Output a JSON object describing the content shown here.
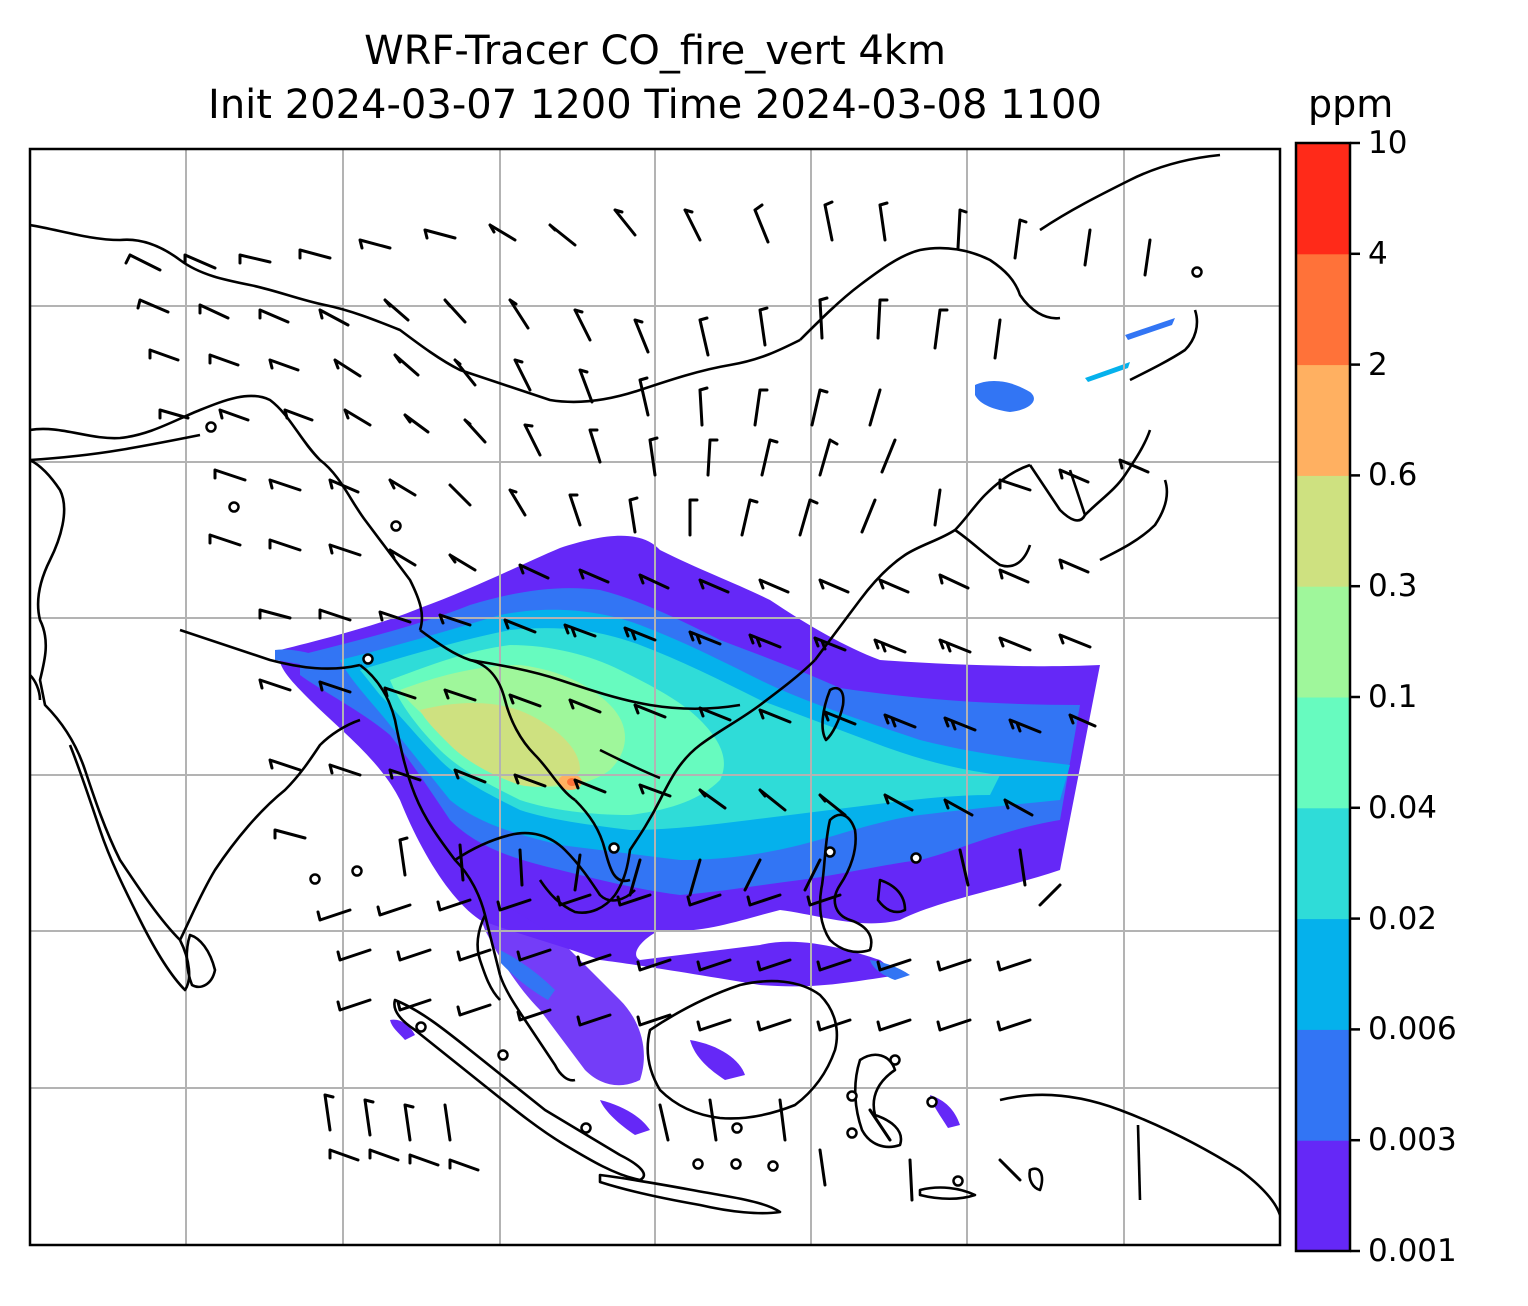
{
  "title": {
    "line1": "WRF-Tracer CO_fire_vert 4km",
    "line2": "Init 2024-03-07 1200 Time 2024-03-08 1100"
  },
  "colorbar": {
    "unit": "ppm",
    "levels": [
      "0.001",
      "0.003",
      "0.006",
      "0.02",
      "0.04",
      "0.1",
      "0.3",
      "0.6",
      "2",
      "4",
      "10"
    ],
    "colors": [
      "#6528f7",
      "#3275f4",
      "#05b1ec",
      "#2fdcd8",
      "#67fbbf",
      "#9ff79b",
      "#cee180",
      "#ffb061",
      "#ff7239",
      "#ff2a19"
    ]
  },
  "map": {
    "gridlines": true,
    "content": "fire CO tracer plume over Southeast Asia and South China with wind barbs"
  }
}
